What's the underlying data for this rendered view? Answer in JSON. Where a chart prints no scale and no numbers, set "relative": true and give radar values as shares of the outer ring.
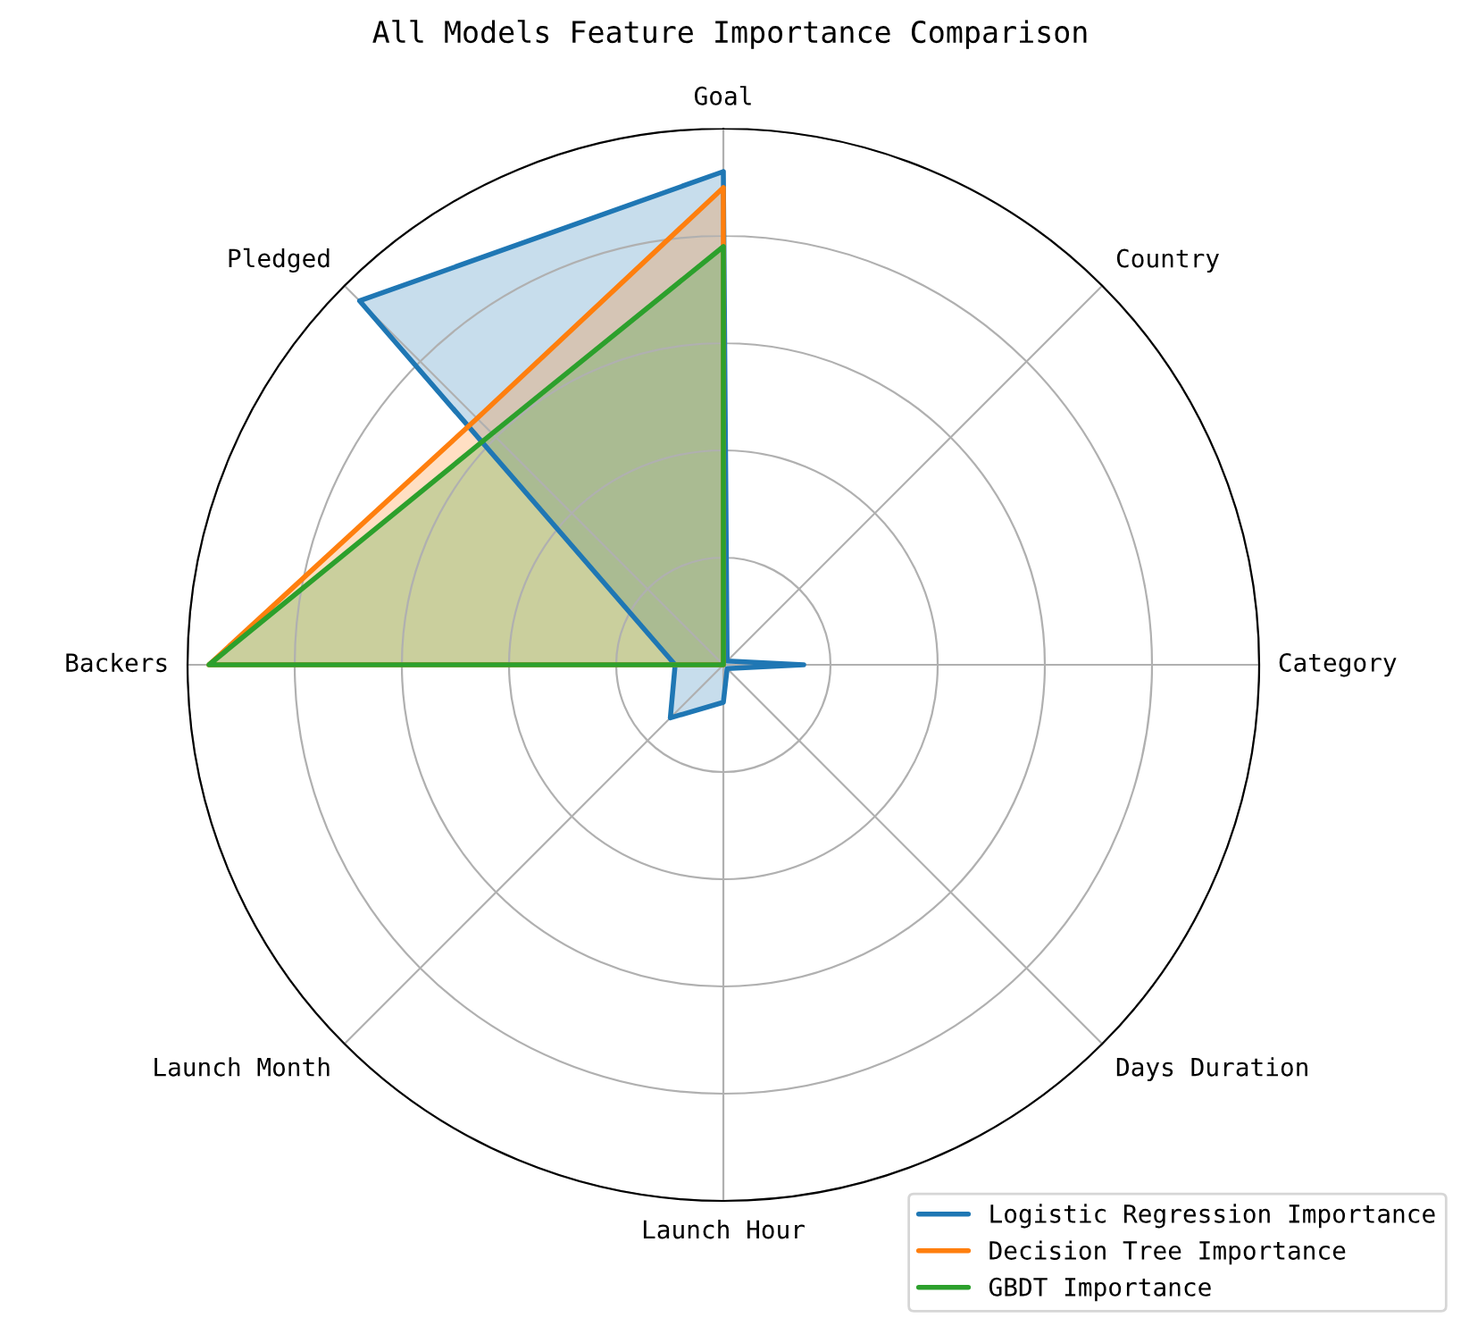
{
  "chart_data": {
    "type": "radar",
    "title": "All Models Feature Importance Comparison",
    "relative": true,
    "grid": true,
    "legend": "bottom right",
    "categories": [
      "Goal",
      "Country",
      "Category",
      "Days Duration",
      "Launch Hour",
      "Launch Month",
      "Backers",
      "Pledged"
    ],
    "series": [
      {
        "name": "Logistic Regression Importance",
        "color": "#1f77b4",
        "values": [
          0.92,
          0.01,
          0.15,
          0.01,
          0.07,
          0.14,
          0.09,
          0.96
        ]
      },
      {
        "name": "Decision Tree Importance",
        "color": "#ff7f0e",
        "values": [
          0.89,
          0,
          0,
          0,
          0,
          0,
          0.96,
          0.65
        ]
      },
      {
        "name": "GBDT Importance",
        "color": "#2ca02c",
        "values": [
          0.78,
          0,
          0,
          0,
          0,
          0,
          0.96,
          0.61
        ]
      }
    ]
  }
}
